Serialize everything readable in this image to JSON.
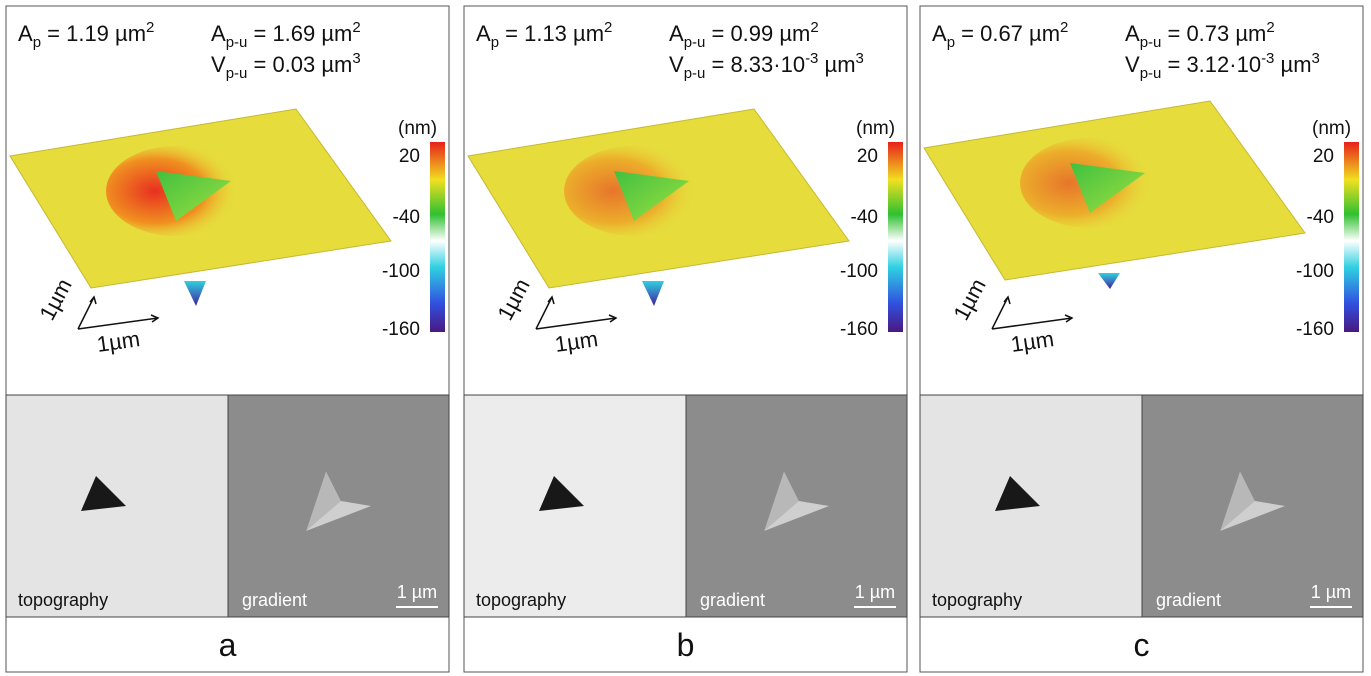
{
  "panels": [
    {
      "label": "a",
      "area_projected": [
        {
          "text": "A"
        },
        {
          "text": "p",
          "style": "sub"
        },
        {
          "text": " = 1.19 µm"
        },
        {
          "text": "2",
          "style": "sup"
        }
      ],
      "area_pileup": [
        {
          "text": "A"
        },
        {
          "text": "p-u",
          "style": "sub"
        },
        {
          "text": " = 1.69 µm"
        },
        {
          "text": "2",
          "style": "sup"
        }
      ],
      "volume_pileup": [
        {
          "text": "V"
        },
        {
          "text": "p-u",
          "style": "sub"
        },
        {
          "text": " = 0.03 µm"
        },
        {
          "text": "3",
          "style": "sup"
        }
      ],
      "colorbar": {
        "unit": "(nm)",
        "ticks": [
          20,
          -40,
          -100,
          -160
        ]
      },
      "axis_labels": [
        "1µm",
        "1µm"
      ],
      "images": [
        {
          "caption": "topography"
        },
        {
          "caption": "gradient",
          "scale_bar": "1 µm"
        }
      ]
    },
    {
      "label": "b",
      "area_projected": [
        {
          "text": "A"
        },
        {
          "text": "p",
          "style": "sub"
        },
        {
          "text": " = 1.13 µm"
        },
        {
          "text": "2",
          "style": "sup"
        }
      ],
      "area_pileup": [
        {
          "text": "A"
        },
        {
          "text": "p-u",
          "style": "sub"
        },
        {
          "text": " = 0.99 µm"
        },
        {
          "text": "2",
          "style": "sup"
        }
      ],
      "volume_pileup": [
        {
          "text": "V"
        },
        {
          "text": "p-u",
          "style": "sub"
        },
        {
          "text": " = 8.33·10"
        },
        {
          "text": "-3",
          "style": "sup"
        },
        {
          "text": " µm"
        },
        {
          "text": "3",
          "style": "sup"
        }
      ],
      "colorbar": {
        "unit": "(nm)",
        "ticks": [
          20,
          -40,
          -100,
          -160
        ]
      },
      "axis_labels": [
        "1µm",
        "1µm"
      ],
      "images": [
        {
          "caption": "topography"
        },
        {
          "caption": "gradient",
          "scale_bar": "1 µm"
        }
      ]
    },
    {
      "label": "c",
      "area_projected": [
        {
          "text": "A"
        },
        {
          "text": "p",
          "style": "sub"
        },
        {
          "text": " = 0.67 µm"
        },
        {
          "text": "2",
          "style": "sup"
        }
      ],
      "area_pileup": [
        {
          "text": "A"
        },
        {
          "text": "p-u",
          "style": "sub"
        },
        {
          "text": " = 0.73 µm"
        },
        {
          "text": "2",
          "style": "sup"
        }
      ],
      "volume_pileup": [
        {
          "text": "V"
        },
        {
          "text": "p-u",
          "style": "sub"
        },
        {
          "text": " = 3.12·10"
        },
        {
          "text": "-3",
          "style": "sup"
        },
        {
          "text": " µm"
        },
        {
          "text": "3",
          "style": "sup"
        }
      ],
      "colorbar": {
        "unit": "(nm)",
        "ticks": [
          20,
          -40,
          -100,
          -160
        ]
      },
      "axis_labels": [
        "1µm",
        "1µm"
      ],
      "images": [
        {
          "caption": "topography"
        },
        {
          "caption": "gradient",
          "scale_bar": "1 µm"
        }
      ]
    }
  ]
}
